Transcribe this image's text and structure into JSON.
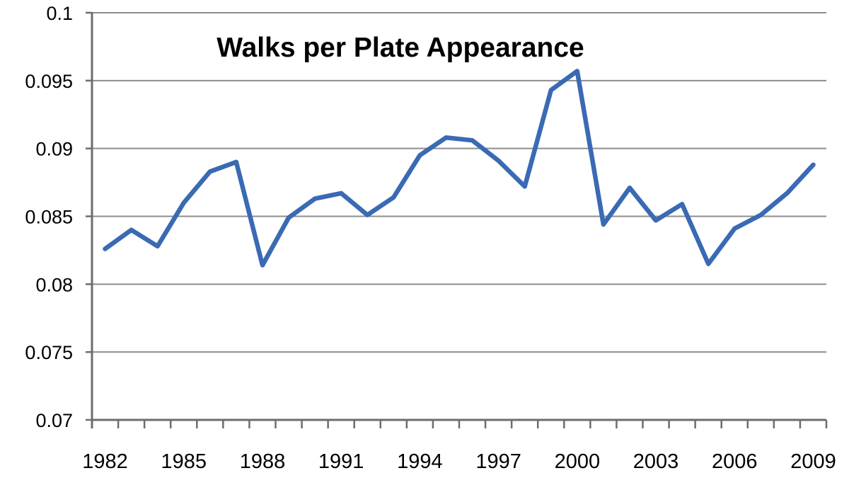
{
  "chart_data": {
    "type": "line",
    "title": "Walks per Plate Appearance",
    "x": [
      1982,
      1983,
      1984,
      1985,
      1986,
      1987,
      1988,
      1989,
      1990,
      1991,
      1992,
      1993,
      1994,
      1995,
      1996,
      1997,
      1998,
      1999,
      2000,
      2001,
      2002,
      2003,
      2004,
      2005,
      2006,
      2007,
      2008,
      2009
    ],
    "values": [
      0.0826,
      0.084,
      0.0828,
      0.086,
      0.0883,
      0.089,
      0.0814,
      0.0849,
      0.0863,
      0.0867,
      0.0851,
      0.0864,
      0.0895,
      0.0908,
      0.0906,
      0.0891,
      0.0872,
      0.0943,
      0.0957,
      0.0844,
      0.0871,
      0.0847,
      0.0859,
      0.0815,
      0.0841,
      0.0851,
      0.0867,
      0.0888
    ],
    "series_name": "Walks per Plate Appearance",
    "xlabel": "",
    "ylabel": "",
    "ylim": [
      0.07,
      0.1
    ],
    "y_tick_values": [
      0.1,
      0.095,
      0.09,
      0.085,
      0.08,
      0.075,
      0.07
    ],
    "y_tick_labels": [
      "0.1",
      "0.095",
      "0.09",
      "0.085",
      "0.08",
      "0.075",
      "0.07"
    ],
    "x_tick_label_years": [
      1982,
      1985,
      1988,
      1991,
      1994,
      1997,
      2000,
      2003,
      2006,
      2009
    ],
    "grid": true,
    "legend": "none",
    "colors": {
      "line": "#3a6ab3",
      "gridline": "#8e8e8e",
      "axis": "#6d6d6d",
      "text": "#000000",
      "background": "#ffffff"
    }
  }
}
